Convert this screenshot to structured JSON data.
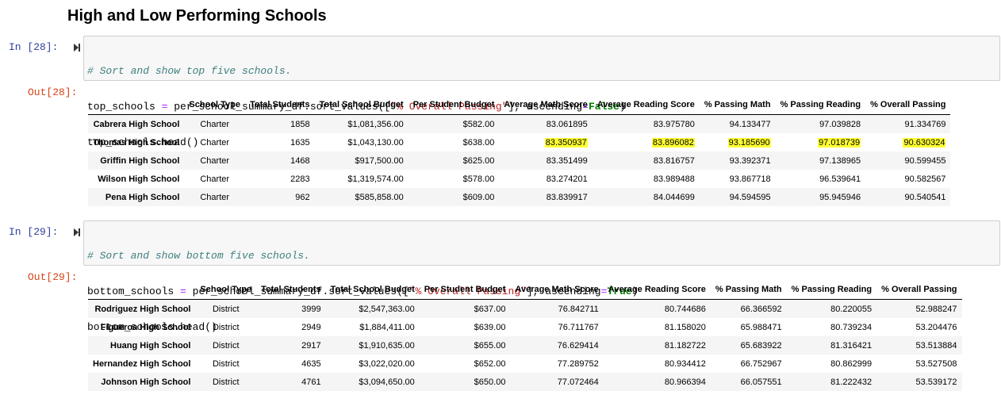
{
  "heading": "High and Low Performing Schools",
  "cells": [
    {
      "in_prompt": "In [28]:",
      "out_prompt": "Out[28]:",
      "code": {
        "comment": "# Sort and show top five schools.",
        "line2_a": "top_schools ",
        "line2_eq": "=",
        "line2_b": " per_school_summary_df.sort_values([",
        "line2_str": "\"% Overall Passing\"",
        "line2_c": "], ascending",
        "line2_eq2": "=",
        "line2_kw": "False",
        "line2_d": ")",
        "line3": "top_schools.head()"
      },
      "columns": [
        "",
        "School Type",
        "Total Students",
        "Total School Budget",
        "Per Student Budget",
        "Average Math Score",
        "Average Reading Score",
        "% Passing Math",
        "% Passing Reading",
        "% Overall Passing"
      ],
      "rows": [
        [
          "Cabrera High School",
          "Charter",
          "1858",
          "$1,081,356.00",
          "$582.00",
          "83.061895",
          "83.975780",
          "94.133477",
          "97.039828",
          "91.334769"
        ],
        [
          "Thomas High School",
          "Charter",
          "1635",
          "$1,043,130.00",
          "$638.00",
          "83.350937",
          "83.896082",
          "93.185690",
          "97.018739",
          "90.630324"
        ],
        [
          "Griffin High School",
          "Charter",
          "1468",
          "$917,500.00",
          "$625.00",
          "83.351499",
          "83.816757",
          "93.392371",
          "97.138965",
          "90.599455"
        ],
        [
          "Wilson High School",
          "Charter",
          "2283",
          "$1,319,574.00",
          "$578.00",
          "83.274201",
          "83.989488",
          "93.867718",
          "96.539641",
          "90.582567"
        ],
        [
          "Pena High School",
          "Charter",
          "962",
          "$585,858.00",
          "$609.00",
          "83.839917",
          "84.044699",
          "94.594595",
          "95.945946",
          "90.540541"
        ]
      ]
    },
    {
      "in_prompt": "In [29]:",
      "out_prompt": "Out[29]:",
      "code": {
        "comment": "# Sort and show bottom five schools.",
        "line2_a": "bottom_schools ",
        "line2_eq": "=",
        "line2_b": " per_school_summary_df.sort_values([",
        "line2_str": "\"% Overall Passing\"",
        "line2_c": "], ascending",
        "line2_eq2": "=",
        "line2_kw": "True",
        "line2_d": ")",
        "line3": "bottom_schools.head()"
      },
      "columns": [
        "",
        "School Type",
        "Total Students",
        "Total School Budget",
        "Per Student Budget",
        "Average Math Score",
        "Average Reading Score",
        "% Passing Math",
        "% Passing Reading",
        "% Overall Passing"
      ],
      "rows": [
        [
          "Rodriguez High School",
          "District",
          "3999",
          "$2,547,363.00",
          "$637.00",
          "76.842711",
          "80.744686",
          "66.366592",
          "80.220055",
          "52.988247"
        ],
        [
          "Figueroa High School",
          "District",
          "2949",
          "$1,884,411.00",
          "$639.00",
          "76.711767",
          "81.158020",
          "65.988471",
          "80.739234",
          "53.204476"
        ],
        [
          "Huang High School",
          "District",
          "2917",
          "$1,910,635.00",
          "$655.00",
          "76.629414",
          "81.182722",
          "65.683922",
          "81.316421",
          "53.513884"
        ],
        [
          "Hernandez High School",
          "District",
          "4635",
          "$3,022,020.00",
          "$652.00",
          "77.289752",
          "80.934412",
          "66.752967",
          "80.862999",
          "53.527508"
        ],
        [
          "Johnson High School",
          "District",
          "4761",
          "$3,094,650.00",
          "$650.00",
          "77.072464",
          "80.966394",
          "66.057551",
          "81.222432",
          "53.539172"
        ]
      ]
    }
  ],
  "highlight": {
    "color": "#ffff33",
    "cell": 0,
    "row": 1,
    "cols_from": 5
  }
}
